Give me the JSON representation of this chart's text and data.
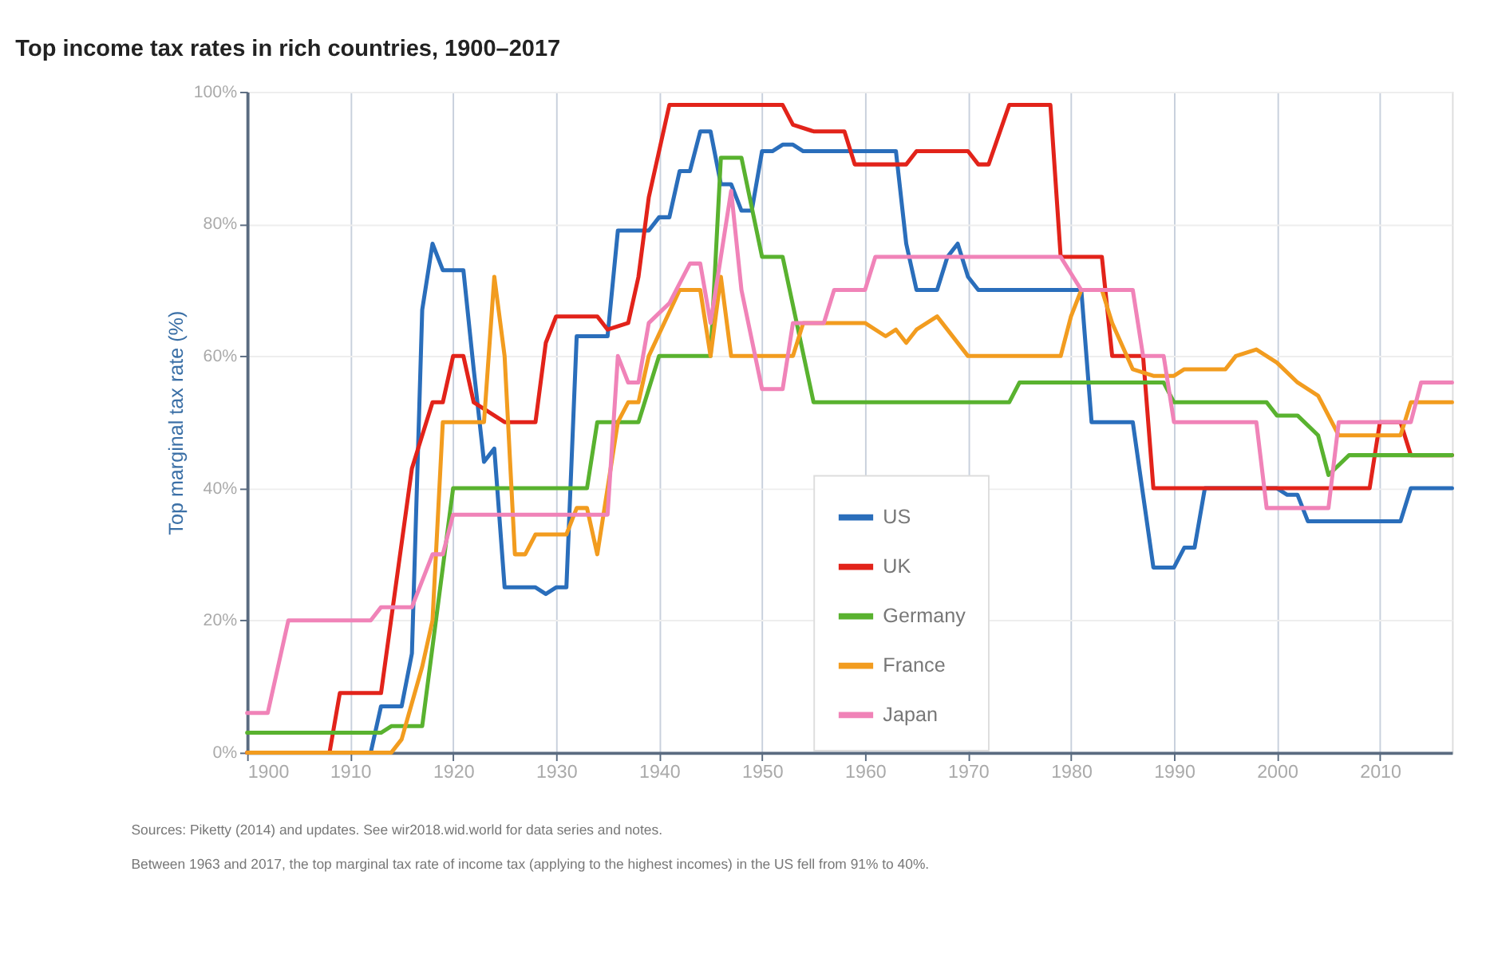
{
  "chart_data": {
    "type": "line",
    "title": "Top income tax rates in rich countries, 1900–2017",
    "ylabel": "Top marginal tax rate (%)",
    "xlim": [
      1900,
      2017
    ],
    "xticks": [
      1900,
      1910,
      1920,
      1930,
      1940,
      1950,
      1960,
      1970,
      1980,
      1990,
      2000,
      2010
    ],
    "ylim": [
      0,
      100
    ],
    "yticks": [
      {
        "value": 0,
        "label": "0%"
      },
      {
        "value": 20,
        "label": "20%"
      },
      {
        "value": 40,
        "label": "40%"
      },
      {
        "value": 60,
        "label": "60%"
      },
      {
        "value": 80,
        "label": "80%"
      },
      {
        "value": 100,
        "label": "100%"
      }
    ],
    "grid": true,
    "legend": "bottom",
    "marker": "none",
    "line_style": "solid",
    "series": [
      {
        "name": "US",
        "color": "#2a6ebb",
        "x": [
          1900,
          1912,
          1913,
          1915,
          1916,
          1917,
          1918,
          1919,
          1921,
          1922,
          1923,
          1924,
          1925,
          1928,
          1929,
          1930,
          1931,
          1932,
          1935,
          1936,
          1939,
          1940,
          1941,
          1942,
          1943,
          1944,
          1945,
          1946,
          1947,
          1948,
          1949,
          1950,
          1951,
          1952,
          1953,
          1954,
          1963,
          1964,
          1965,
          1967,
          1968,
          1969,
          1970,
          1971,
          1981,
          1982,
          1986,
          1987,
          1988,
          1990,
          1991,
          1992,
          1993,
          2000,
          2001,
          2002,
          2003,
          2012,
          2013,
          2017
        ],
        "values": [
          0,
          0,
          7,
          7,
          15,
          67,
          77,
          73,
          73,
          58,
          44,
          46,
          25,
          25,
          24,
          25,
          25,
          63,
          63,
          79,
          79,
          81,
          81,
          88,
          88,
          94,
          94,
          86,
          86,
          82,
          82,
          91,
          91,
          92,
          92,
          91,
          91,
          77,
          70,
          70,
          75,
          77,
          72,
          70,
          70,
          50,
          50,
          39,
          28,
          28,
          31,
          31,
          40,
          40,
          39,
          39,
          35,
          35,
          40,
          40
        ]
      },
      {
        "name": "UK",
        "color": "#e2231a",
        "x": [
          1900,
          1908,
          1909,
          1913,
          1916,
          1918,
          1919,
          1920,
          1921,
          1922,
          1925,
          1928,
          1929,
          1930,
          1934,
          1935,
          1937,
          1938,
          1939,
          1941,
          1952,
          1953,
          1955,
          1958,
          1959,
          1964,
          1965,
          1970,
          1971,
          1972,
          1974,
          1978,
          1979,
          1983,
          1984,
          1987,
          1988,
          2009,
          2010,
          2012,
          2013,
          2017
        ],
        "values": [
          0,
          0,
          9,
          9,
          43,
          53,
          53,
          60,
          60,
          53,
          50,
          50,
          62,
          66,
          66,
          64,
          65,
          72,
          84,
          98,
          98,
          95,
          94,
          94,
          89,
          89,
          91,
          91,
          89,
          89,
          98,
          98,
          75,
          75,
          60,
          60,
          40,
          40,
          50,
          50,
          45,
          45
        ]
      },
      {
        "name": "Germany",
        "color": "#59b22f",
        "x": [
          1900,
          1913,
          1914,
          1917,
          1920,
          1933,
          1934,
          1938,
          1939,
          1940,
          1945,
          1946,
          1948,
          1950,
          1952,
          1955,
          1974,
          1975,
          1989,
          1990,
          1999,
          2000,
          2002,
          2004,
          2005,
          2007,
          2017
        ],
        "values": [
          3,
          3,
          4,
          4,
          40,
          40,
          50,
          50,
          55,
          60,
          60,
          90,
          90,
          75,
          75,
          53,
          53,
          56,
          56,
          53,
          53,
          51,
          51,
          48,
          42,
          45,
          45
        ]
      },
      {
        "name": "France",
        "color": "#f29c1f",
        "x": [
          1900,
          1914,
          1915,
          1917,
          1918,
          1919,
          1923,
          1924,
          1925,
          1926,
          1927,
          1928,
          1931,
          1932,
          1933,
          1934,
          1936,
          1937,
          1938,
          1939,
          1942,
          1944,
          1945,
          1946,
          1947,
          1948,
          1953,
          1954,
          1960,
          1962,
          1963,
          1964,
          1965,
          1967,
          1970,
          1979,
          1980,
          1981,
          1983,
          1984,
          1986,
          1988,
          1990,
          1991,
          1995,
          1996,
          1998,
          2000,
          2002,
          2004,
          2006,
          2012,
          2013,
          2017
        ],
        "values": [
          0,
          0,
          2,
          13,
          20,
          50,
          50,
          72,
          60,
          30,
          30,
          33,
          33,
          37,
          37,
          30,
          50,
          53,
          53,
          60,
          70,
          70,
          60,
          72,
          60,
          60,
          60,
          65,
          65,
          63,
          64,
          62,
          64,
          66,
          60,
          60,
          66,
          70,
          70,
          65,
          58,
          57,
          57,
          58,
          58,
          60,
          61,
          59,
          56,
          54,
          48,
          48,
          53,
          53
        ]
      },
      {
        "name": "Japan",
        "color": "#f083b8",
        "x": [
          1900,
          1902,
          1904,
          1912,
          1913,
          1916,
          1918,
          1919,
          1920,
          1935,
          1936,
          1937,
          1938,
          1939,
          1941,
          1943,
          1944,
          1945,
          1947,
          1948,
          1950,
          1952,
          1953,
          1956,
          1957,
          1960,
          1961,
          1979,
          1981,
          1986,
          1987,
          1989,
          1990,
          1998,
          1999,
          2005,
          2006,
          2013,
          2014,
          2017
        ],
        "values": [
          6,
          6,
          20,
          20,
          22,
          22,
          30,
          30,
          36,
          36,
          60,
          56,
          56,
          65,
          68,
          74,
          74,
          65,
          85,
          70,
          55,
          55,
          65,
          65,
          70,
          70,
          75,
          75,
          70,
          70,
          60,
          60,
          50,
          50,
          37,
          37,
          50,
          50,
          56,
          56
        ]
      }
    ],
    "annotations": [
      "Sources: Piketty (2014) and updates. See wir2018.wid.world for data series and notes.",
      "Between 1963 and 2017, the top marginal tax rate of income tax (applying to the highest incomes) in the US fell from 91% to 40%."
    ]
  }
}
